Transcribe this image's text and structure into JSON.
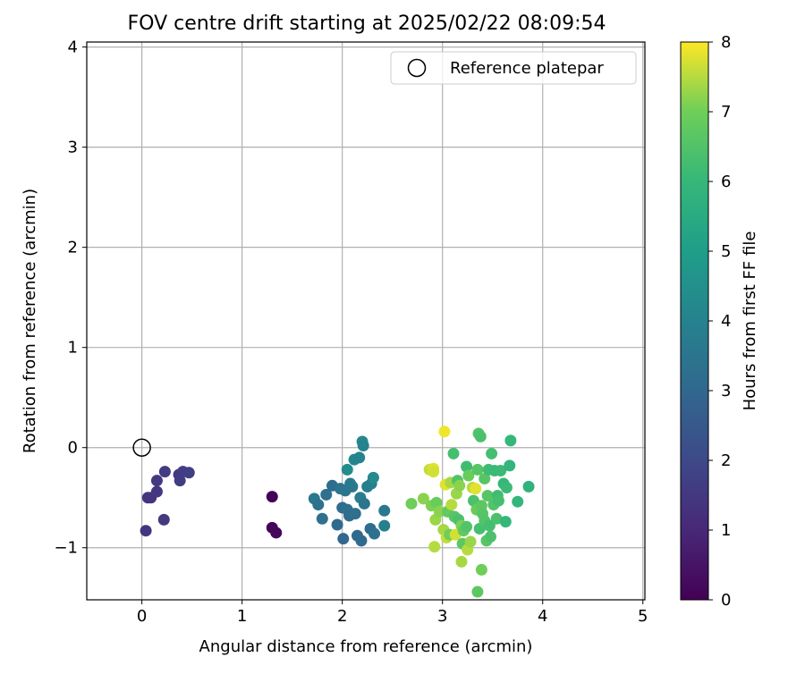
{
  "chart_data": {
    "type": "scatter",
    "title": "FOV centre drift starting at 2025/02/22 08:09:54",
    "xlabel": "Angular distance from reference (arcmin)",
    "ylabel": "Rotation from reference (arcmin)",
    "xlim": [
      -0.55,
      5.02
    ],
    "ylim": [
      -1.52,
      4.05
    ],
    "xticks": [
      0,
      1,
      2,
      3,
      4,
      5
    ],
    "yticks": [
      -1,
      0,
      1,
      2,
      3,
      4
    ],
    "grid": true,
    "legend": {
      "position": "top-right",
      "entries": [
        "Reference platepar"
      ]
    },
    "reference_point": {
      "x": 0.0,
      "y": 0.0,
      "label": "Reference platepar"
    },
    "colorbar": {
      "label": "Hours from first FF file",
      "min": 0,
      "max": 8,
      "ticks": [
        0,
        1,
        2,
        3,
        4,
        5,
        6,
        7,
        8
      ],
      "colormap": "viridis"
    },
    "points": [
      {
        "x": 1.3,
        "y": -0.49,
        "h": 0.05
      },
      {
        "x": 1.3,
        "y": -0.8,
        "h": 0.1
      },
      {
        "x": 1.34,
        "y": -0.85,
        "h": 0.15
      },
      {
        "x": 0.04,
        "y": -0.83,
        "h": 1.4
      },
      {
        "x": 0.06,
        "y": -0.5,
        "h": 1.35
      },
      {
        "x": 0.09,
        "y": -0.5,
        "h": 1.4
      },
      {
        "x": 0.15,
        "y": -0.44,
        "h": 1.45
      },
      {
        "x": 0.15,
        "y": -0.33,
        "h": 1.5
      },
      {
        "x": 0.22,
        "y": -0.72,
        "h": 1.55
      },
      {
        "x": 0.23,
        "y": -0.24,
        "h": 1.6
      },
      {
        "x": 0.37,
        "y": -0.27,
        "h": 1.5
      },
      {
        "x": 0.38,
        "y": -0.33,
        "h": 1.6
      },
      {
        "x": 0.41,
        "y": -0.24,
        "h": 1.65
      },
      {
        "x": 0.47,
        "y": -0.25,
        "h": 1.7
      },
      {
        "x": 1.72,
        "y": -0.51,
        "h": 3.6
      },
      {
        "x": 1.76,
        "y": -0.57,
        "h": 3.4
      },
      {
        "x": 1.8,
        "y": -0.71,
        "h": 3.3
      },
      {
        "x": 1.84,
        "y": -0.47,
        "h": 3.3
      },
      {
        "x": 1.9,
        "y": -0.38,
        "h": 3.2
      },
      {
        "x": 1.95,
        "y": -0.77,
        "h": 3.1
      },
      {
        "x": 1.98,
        "y": -0.41,
        "h": 3.4
      },
      {
        "x": 2.0,
        "y": -0.6,
        "h": 3.2
      },
      {
        "x": 2.01,
        "y": -0.91,
        "h": 3.0
      },
      {
        "x": 2.03,
        "y": -0.43,
        "h": 3.5
      },
      {
        "x": 2.05,
        "y": -0.62,
        "h": 3.3
      },
      {
        "x": 2.05,
        "y": -0.22,
        "h": 4.4
      },
      {
        "x": 2.07,
        "y": -0.68,
        "h": 3.2
      },
      {
        "x": 2.08,
        "y": -0.36,
        "h": 3.7
      },
      {
        "x": 2.1,
        "y": -0.39,
        "h": 3.6
      },
      {
        "x": 2.12,
        "y": -0.12,
        "h": 4.1
      },
      {
        "x": 2.13,
        "y": -0.66,
        "h": 3.3
      },
      {
        "x": 2.15,
        "y": -0.88,
        "h": 3.0
      },
      {
        "x": 2.17,
        "y": -0.1,
        "h": 4.0
      },
      {
        "x": 2.18,
        "y": -0.5,
        "h": 3.8
      },
      {
        "x": 2.19,
        "y": -0.93,
        "h": 3.1
      },
      {
        "x": 2.2,
        "y": 0.06,
        "h": 4.2
      },
      {
        "x": 2.21,
        "y": 0.02,
        "h": 4.0
      },
      {
        "x": 2.22,
        "y": -0.56,
        "h": 3.5
      },
      {
        "x": 2.25,
        "y": -0.39,
        "h": 3.8
      },
      {
        "x": 2.28,
        "y": -0.81,
        "h": 3.2
      },
      {
        "x": 2.29,
        "y": -0.36,
        "h": 3.9
      },
      {
        "x": 2.31,
        "y": -0.3,
        "h": 4.3
      },
      {
        "x": 2.32,
        "y": -0.86,
        "h": 3.3
      },
      {
        "x": 2.42,
        "y": -0.63,
        "h": 3.6
      },
      {
        "x": 2.42,
        "y": -0.78,
        "h": 3.9
      },
      {
        "x": 2.69,
        "y": -0.56,
        "h": 7.0
      },
      {
        "x": 2.81,
        "y": -0.51,
        "h": 7.2
      },
      {
        "x": 2.87,
        "y": -0.22,
        "h": 7.6
      },
      {
        "x": 2.89,
        "y": -0.58,
        "h": 7.1
      },
      {
        "x": 2.91,
        "y": -0.21,
        "h": 7.8
      },
      {
        "x": 2.91,
        "y": -0.24,
        "h": 7.7
      },
      {
        "x": 2.92,
        "y": -0.99,
        "h": 7.5
      },
      {
        "x": 2.93,
        "y": -0.72,
        "h": 7.3
      },
      {
        "x": 2.94,
        "y": -0.55,
        "h": 6.9
      },
      {
        "x": 2.97,
        "y": -0.64,
        "h": 7.2
      },
      {
        "x": 3.01,
        "y": -0.82,
        "h": 7.4
      },
      {
        "x": 3.02,
        "y": 0.16,
        "h": 7.9
      },
      {
        "x": 3.03,
        "y": -0.37,
        "h": 7.8
      },
      {
        "x": 3.04,
        "y": -0.9,
        "h": 7.6
      },
      {
        "x": 3.05,
        "y": -0.64,
        "h": 6.8
      },
      {
        "x": 3.07,
        "y": -0.87,
        "h": 7.0
      },
      {
        "x": 3.08,
        "y": -0.35,
        "h": 7.4
      },
      {
        "x": 3.09,
        "y": -0.57,
        "h": 7.5
      },
      {
        "x": 3.11,
        "y": -0.06,
        "h": 6.3
      },
      {
        "x": 3.12,
        "y": -0.69,
        "h": 6.6
      },
      {
        "x": 3.13,
        "y": -0.87,
        "h": 7.7
      },
      {
        "x": 3.14,
        "y": -0.46,
        "h": 7.3
      },
      {
        "x": 3.15,
        "y": -0.33,
        "h": 6.5
      },
      {
        "x": 3.16,
        "y": -0.72,
        "h": 6.4
      },
      {
        "x": 3.17,
        "y": -0.38,
        "h": 7.2
      },
      {
        "x": 3.19,
        "y": -0.78,
        "h": 7.1
      },
      {
        "x": 3.19,
        "y": -1.14,
        "h": 7.4
      },
      {
        "x": 3.2,
        "y": -0.96,
        "h": 6.7
      },
      {
        "x": 3.21,
        "y": -0.83,
        "h": 6.8
      },
      {
        "x": 3.24,
        "y": -0.19,
        "h": 6.2
      },
      {
        "x": 3.24,
        "y": -0.79,
        "h": 6.5
      },
      {
        "x": 3.25,
        "y": -1.02,
        "h": 7.5
      },
      {
        "x": 3.26,
        "y": -0.28,
        "h": 6.9
      },
      {
        "x": 3.28,
        "y": -0.94,
        "h": 7.3
      },
      {
        "x": 3.3,
        "y": -0.4,
        "h": 7.5
      },
      {
        "x": 3.31,
        "y": -0.53,
        "h": 6.4
      },
      {
        "x": 3.33,
        "y": -0.41,
        "h": 7.8
      },
      {
        "x": 3.34,
        "y": -0.62,
        "h": 6.9
      },
      {
        "x": 3.35,
        "y": -1.44,
        "h": 6.7
      },
      {
        "x": 3.35,
        "y": -0.22,
        "h": 6.6
      },
      {
        "x": 3.36,
        "y": 0.14,
        "h": 6.5
      },
      {
        "x": 3.37,
        "y": -0.81,
        "h": 6.3
      },
      {
        "x": 3.38,
        "y": 0.11,
        "h": 6.4
      },
      {
        "x": 3.39,
        "y": -0.58,
        "h": 6.7
      },
      {
        "x": 3.39,
        "y": -1.22,
        "h": 7.0
      },
      {
        "x": 3.4,
        "y": -0.66,
        "h": 6.6
      },
      {
        "x": 3.42,
        "y": -0.73,
        "h": 6.5
      },
      {
        "x": 3.42,
        "y": -0.31,
        "h": 6.6
      },
      {
        "x": 3.44,
        "y": -0.93,
        "h": 6.6
      },
      {
        "x": 3.45,
        "y": -0.48,
        "h": 6.6
      },
      {
        "x": 3.46,
        "y": -0.22,
        "h": 6.2
      },
      {
        "x": 3.47,
        "y": -0.78,
        "h": 6.3
      },
      {
        "x": 3.48,
        "y": -0.89,
        "h": 6.4
      },
      {
        "x": 3.49,
        "y": -0.06,
        "h": 6.3
      },
      {
        "x": 3.51,
        "y": -0.57,
        "h": 6.5
      },
      {
        "x": 3.52,
        "y": -0.23,
        "h": 6.1
      },
      {
        "x": 3.54,
        "y": -0.71,
        "h": 6.4
      },
      {
        "x": 3.55,
        "y": -0.48,
        "h": 6.2
      },
      {
        "x": 3.56,
        "y": -0.53,
        "h": 6.3
      },
      {
        "x": 3.58,
        "y": -0.23,
        "h": 6.1
      },
      {
        "x": 3.61,
        "y": -0.36,
        "h": 6.0
      },
      {
        "x": 3.63,
        "y": -0.74,
        "h": 6.0
      },
      {
        "x": 3.64,
        "y": -0.4,
        "h": 6.1
      },
      {
        "x": 3.67,
        "y": -0.18,
        "h": 5.9
      },
      {
        "x": 3.68,
        "y": 0.07,
        "h": 6.0
      },
      {
        "x": 3.75,
        "y": -0.54,
        "h": 5.9
      },
      {
        "x": 3.86,
        "y": -0.39,
        "h": 5.8
      }
    ]
  }
}
